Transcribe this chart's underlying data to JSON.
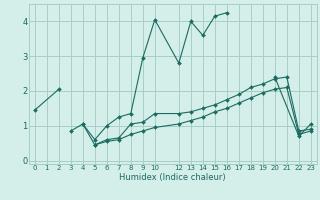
{
  "xlabel": "Humidex (Indice chaleur)",
  "background_color": "#d4eeea",
  "grid_color": "#a8cec8",
  "line_color": "#1a6b60",
  "xlim": [
    -0.5,
    23.5
  ],
  "ylim": [
    -0.1,
    4.5
  ],
  "xticks": [
    0,
    1,
    2,
    3,
    4,
    5,
    6,
    7,
    8,
    9,
    10,
    12,
    13,
    14,
    15,
    16,
    17,
    18,
    19,
    20,
    21,
    22,
    23
  ],
  "yticks": [
    0,
    1,
    2,
    3,
    4
  ],
  "series": [
    {
      "segments": [
        {
          "x": [
            0,
            2
          ],
          "y": [
            1.45,
            2.05
          ]
        },
        {
          "x": [
            4,
            5,
            6,
            7,
            8,
            9,
            10,
            12,
            13,
            14,
            15,
            16
          ],
          "y": [
            1.05,
            0.6,
            1.0,
            1.25,
            1.35,
            2.95,
            4.05,
            2.8,
            4.0,
            3.6,
            4.15,
            4.25
          ]
        },
        {
          "x": [
            20,
            22,
            23
          ],
          "y": [
            2.4,
            0.7,
            1.05
          ]
        }
      ]
    },
    {
      "segments": [
        {
          "x": [
            3,
            4,
            5,
            6,
            7,
            8,
            9,
            10,
            12,
            13,
            14,
            15,
            16,
            17,
            18,
            19,
            20,
            21,
            22,
            23
          ],
          "y": [
            0.85,
            1.05,
            0.45,
            0.6,
            0.65,
            1.05,
            1.1,
            1.35,
            1.35,
            1.4,
            1.5,
            1.6,
            1.75,
            1.9,
            2.1,
            2.2,
            2.35,
            2.4,
            0.85,
            0.9
          ]
        }
      ]
    },
    {
      "segments": [
        {
          "x": [
            5,
            6,
            7,
            8,
            9,
            10,
            12,
            13,
            14,
            15,
            16,
            17,
            18,
            19,
            20,
            21,
            22,
            23
          ],
          "y": [
            0.45,
            0.55,
            0.6,
            0.75,
            0.85,
            0.95,
            1.05,
            1.15,
            1.25,
            1.4,
            1.5,
            1.65,
            1.8,
            1.95,
            2.05,
            2.1,
            0.75,
            0.85
          ]
        }
      ]
    }
  ]
}
